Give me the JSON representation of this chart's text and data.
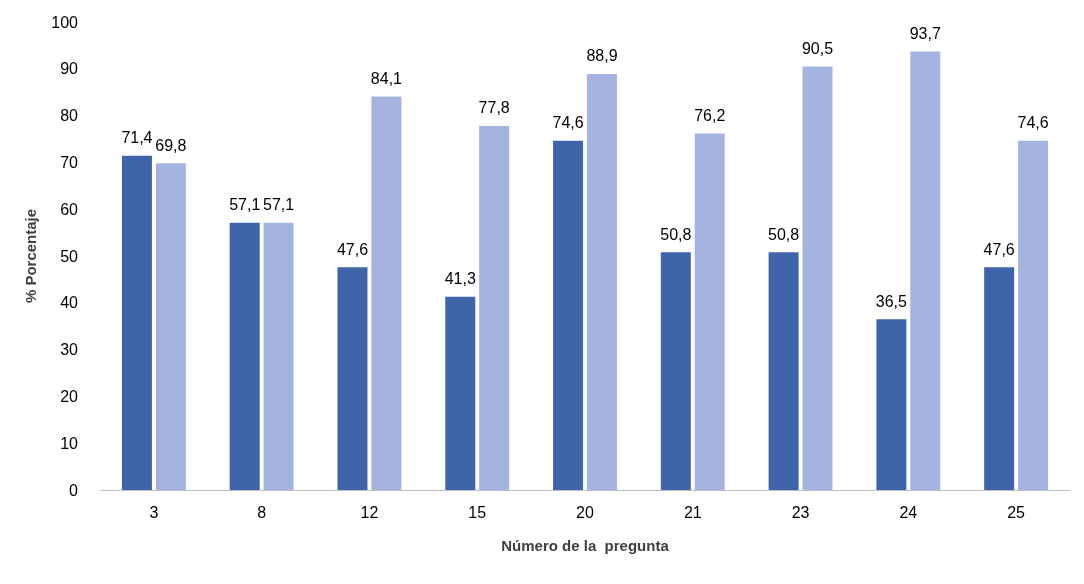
{
  "chart_data": {
    "type": "bar",
    "xlabel": "Número de la  pregunta",
    "ylabel": "% Porcentaje",
    "categories": [
      "3",
      "8",
      "12",
      "15",
      "20",
      "21",
      "23",
      "24",
      "25"
    ],
    "series": [
      {
        "color": "#3f64aa",
        "values": [
          71.4,
          57.1,
          47.6,
          41.3,
          74.6,
          50.8,
          50.8,
          36.5,
          47.6
        ],
        "value_labels": [
          "71,4",
          "57,1",
          "47,6",
          "41,3",
          "74,6",
          "50,8",
          "50,8",
          "36,5",
          "47,6"
        ]
      },
      {
        "color": "#a4b3e0",
        "values": [
          69.8,
          57.1,
          84.1,
          77.8,
          88.9,
          76.2,
          90.5,
          93.7,
          74.6
        ],
        "value_labels": [
          "69,8",
          "57,1",
          "84,1",
          "77,8",
          "88,9",
          "76,2",
          "90,5",
          "93,7",
          "74,6"
        ]
      }
    ],
    "ylim": [
      0,
      100
    ],
    "yticks": [
      0,
      10,
      20,
      30,
      40,
      50,
      60,
      70,
      80,
      90,
      100
    ]
  }
}
